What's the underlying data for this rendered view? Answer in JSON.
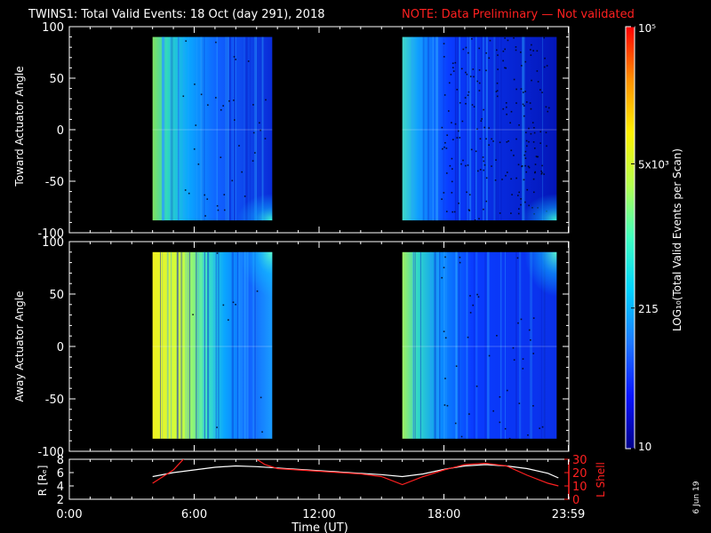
{
  "header": {
    "title": "TWINS1: Total Valid Events: 18 Oct (day 291), 2018",
    "note": "NOTE: Data Preliminary — Not validated",
    "title_color": "#ffffff",
    "note_color": "#ff2020"
  },
  "footer": {
    "plot_date": "6 Jun 19"
  },
  "chart_data": [
    {
      "type": "heatmap",
      "name": "toward",
      "ylabel": "Toward Actuator Angle",
      "ylim": [
        -100,
        100
      ],
      "yticks": [
        100,
        50,
        0,
        -50,
        -100
      ],
      "xlim_hours": [
        0,
        24
      ],
      "data_blocks": [
        {
          "start": "04:00",
          "end": "09:45",
          "angle_range": [
            -88,
            90
          ]
        },
        {
          "start": "16:00",
          "end": "23:25",
          "angle_range": [
            -88,
            90
          ]
        }
      ]
    },
    {
      "type": "heatmap",
      "name": "away",
      "ylabel": "Away Actuator Angle",
      "ylim": [
        -100,
        100
      ],
      "yticks": [
        100,
        50,
        0,
        -50,
        -100
      ],
      "xlim_hours": [
        0,
        24
      ],
      "data_blocks": [
        {
          "start": "04:00",
          "end": "09:45",
          "angle_range": [
            -88,
            90
          ]
        },
        {
          "start": "16:00",
          "end": "23:25",
          "angle_range": [
            -88,
            90
          ]
        }
      ]
    },
    {
      "type": "line",
      "name": "orbit",
      "xlabel": "Time (UT)",
      "x_tick_labels": [
        "0:00",
        "6:00",
        "12:00",
        "18:00",
        "23:59"
      ],
      "x_ticks_hours": [
        0,
        6,
        12,
        18,
        23.98
      ],
      "left_axis": {
        "label": "R [Rₑ]",
        "ylim": [
          2,
          8
        ],
        "ticks": [
          2,
          4,
          6,
          8
        ]
      },
      "right_axis": {
        "label": "L Shell",
        "ylim": [
          0,
          30
        ],
        "ticks": [
          0,
          10,
          20,
          30
        ],
        "color": "#ff2020"
      },
      "series": [
        {
          "axis": "left",
          "color": "#ffffff",
          "x": [
            4.0,
            5.0,
            6.0,
            7.0,
            8.0,
            9.0,
            10.0,
            11.0,
            12.0,
            13.0,
            14.0,
            15.0,
            16.0,
            17.0,
            18.0,
            19.0,
            20.0,
            21.0,
            22.0,
            23.0,
            23.5
          ],
          "y": [
            5.4,
            6.0,
            6.4,
            6.8,
            7.0,
            6.9,
            6.7,
            6.5,
            6.3,
            6.1,
            5.9,
            5.7,
            5.4,
            5.8,
            6.5,
            7.0,
            7.2,
            7.0,
            6.6,
            5.9,
            5.2
          ]
        },
        {
          "axis": "right",
          "color": "#ff2020",
          "segments": [
            {
              "x": [
                4.0,
                5.0,
                5.6
              ],
              "y": [
                12.0,
                22.0,
                32.0
              ]
            },
            {
              "x": [
                8.8,
                9.4,
                10.0,
                11.0,
                12.0,
                13.0,
                14.0,
                15.0,
                16.0,
                17.0,
                18.0,
                19.0,
                20.0,
                21.0,
                22.0,
                23.0,
                23.5
              ],
              "y": [
                32.0,
                26.0,
                23.0,
                22.0,
                21.0,
                20.0,
                19.0,
                17.0,
                11.0,
                17.0,
                22.0,
                26.0,
                27.0,
                25.0,
                18.0,
                12.0,
                10.0
              ]
            }
          ]
        }
      ]
    }
  ],
  "colorbar": {
    "label": "LOG₁₀(Total Valid Events per Scan)",
    "tick_labels": [
      "10",
      "215",
      "5x10³",
      "10⁵"
    ],
    "tick_values": [
      10,
      215,
      5000,
      100000
    ],
    "colors": [
      "#00008a",
      "#0a14ff",
      "#1e78ff",
      "#00d2ff",
      "#40ffc0",
      "#b4ff50",
      "#fff000",
      "#ff9000",
      "#ff0000"
    ]
  }
}
